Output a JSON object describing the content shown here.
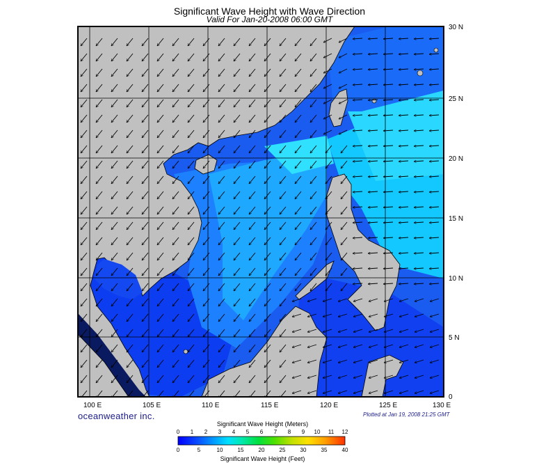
{
  "header": {
    "title": "Significant Wave Height with Wave Direction",
    "subtitle": "Valid For Jan-20-2008 06:00 GMT"
  },
  "map": {
    "lon_labels": [
      "100 E",
      "105 E",
      "110 E",
      "115 E",
      "120 E",
      "125 E",
      "130 E"
    ],
    "lat_labels": [
      "0",
      "5 N",
      "10 N",
      "15 N",
      "20 N",
      "25 N",
      "30 N"
    ],
    "lon_range": [
      99,
      130
    ],
    "lat_range": [
      0,
      30
    ],
    "land_color": "#c0c0c0",
    "arrow_direction": "southwest"
  },
  "footer": {
    "logo": "oceanweather inc.",
    "plotted": "Plotted at Jan 19, 2008 21:25 GMT"
  },
  "colorbar": {
    "title_top": "Significant Wave Height (Meters)",
    "title_bottom": "Significant Wave Height (Feet)",
    "meters": [
      "0",
      "1",
      "2",
      "3",
      "4",
      "5",
      "6",
      "7",
      "8",
      "9",
      "10",
      "11",
      "12"
    ],
    "feet": [
      "0",
      "5",
      "10",
      "15",
      "20",
      "25",
      "30",
      "35",
      "40"
    ],
    "colors": [
      "#0000ff",
      "#0a4cff",
      "#0090ff",
      "#00d8ff",
      "#00e8c0",
      "#00e060",
      "#20e000",
      "#90e000",
      "#e0e000",
      "#ffc000",
      "#ff8000",
      "#ff4000"
    ]
  }
}
